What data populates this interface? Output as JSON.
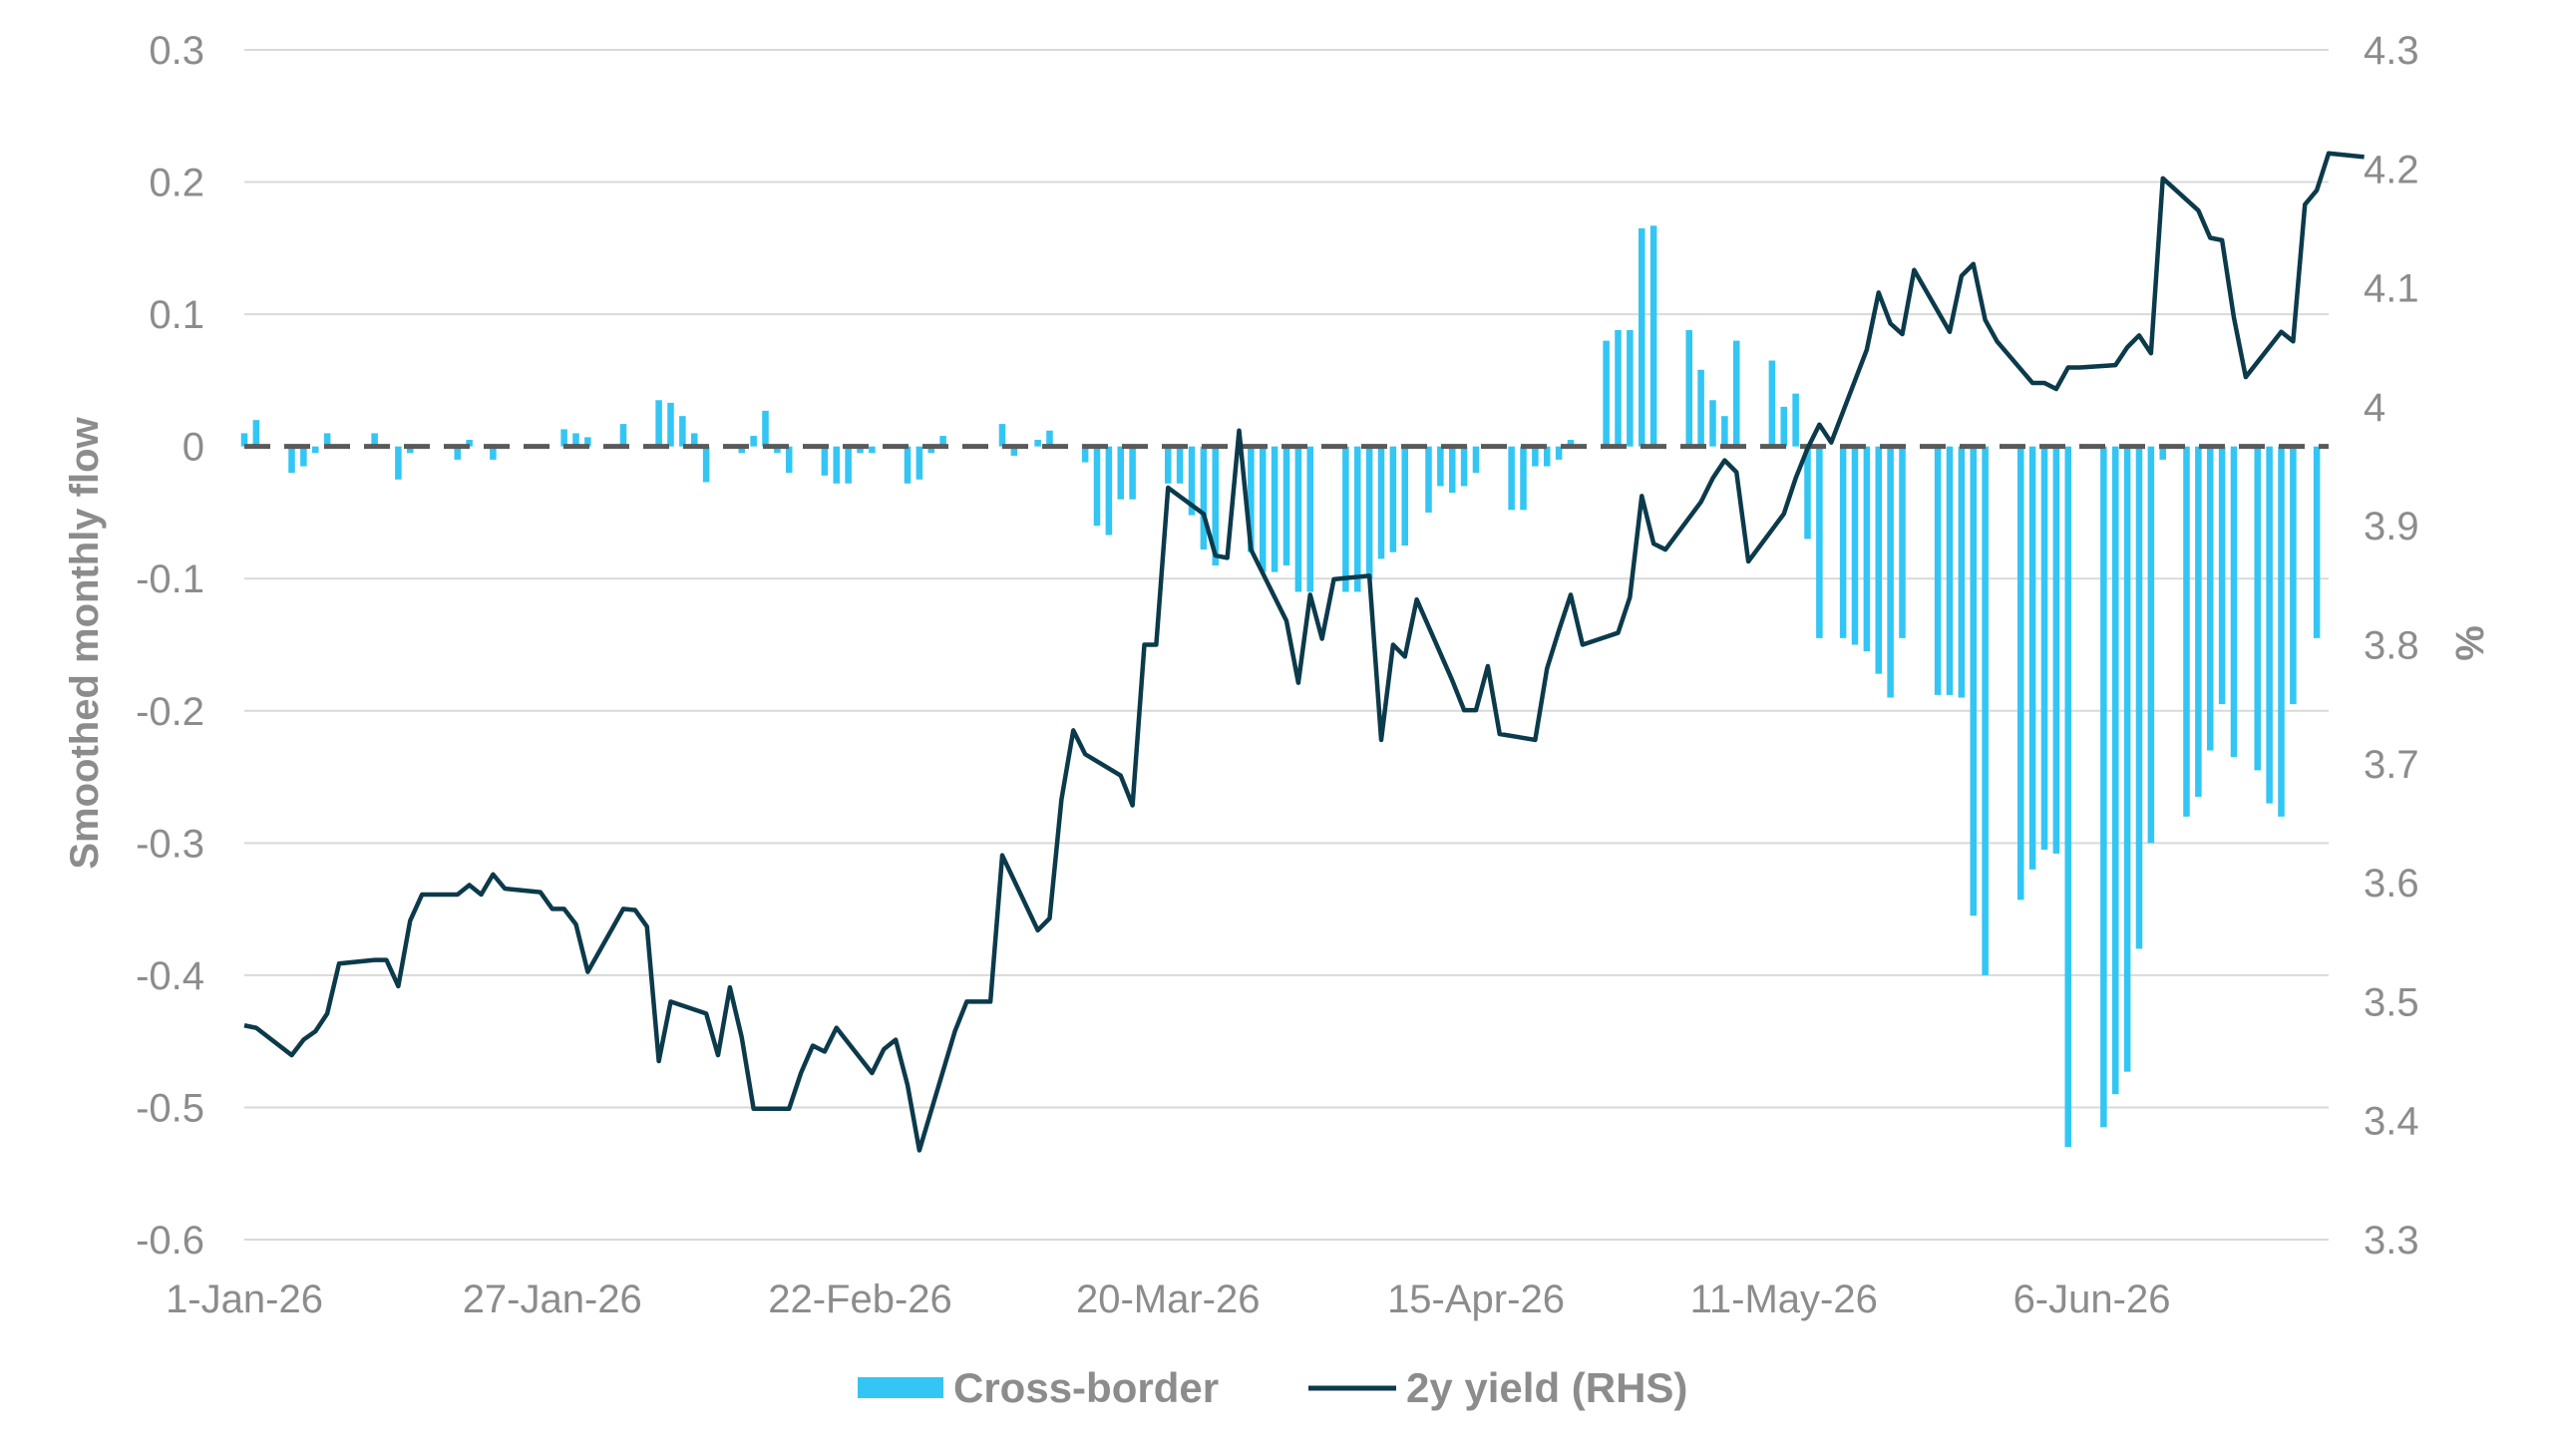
{
  "chart_data": {
    "type": "bar+line",
    "title": "",
    "x_tick_labels": [
      "1-Jan-26",
      "27-Jan-26",
      "22-Feb-26",
      "20-Mar-26",
      "15-Apr-26",
      "11-May-26",
      "6-Jun-26"
    ],
    "x_tick_dates": [
      "2026-01-01",
      "2026-01-27",
      "2026-02-22",
      "2026-03-20",
      "2026-04-15",
      "2026-05-11",
      "2026-06-06"
    ],
    "x_range": [
      "2026-01-01",
      "2026-06-26"
    ],
    "left_axis": {
      "label": "Smoothed monthly flow",
      "range": [
        -0.6,
        0.3
      ],
      "ticks": [
        0.3,
        0.2,
        0.1,
        0,
        -0.1,
        -0.2,
        -0.3,
        -0.4,
        -0.5,
        -0.6
      ],
      "tick_labels": [
        "0.3",
        "0.2",
        "0.1",
        "0",
        "-0.1",
        "-0.2",
        "-0.3",
        "-0.4",
        "-0.5",
        "-0.6"
      ]
    },
    "right_axis": {
      "label": "%",
      "range": [
        3.3,
        4.3
      ],
      "ticks": [
        4.3,
        4.2,
        4.1,
        4.0,
        3.9,
        3.8,
        3.7,
        3.6,
        3.5,
        3.4,
        3.3
      ],
      "tick_labels": [
        "4.3",
        "4.2",
        "4.1",
        "4",
        "3.9",
        "3.8",
        "3.7",
        "3.6",
        "3.5",
        "3.4",
        "3.3"
      ]
    },
    "grid": true,
    "zero_line": "dashed",
    "legend_position": "bottom",
    "series": [
      {
        "name": "Cross-border",
        "kind": "bar",
        "axis": "left",
        "color": "#33c6f4",
        "points": [
          [
            "2026-01-01",
            0.01
          ],
          [
            "2026-01-02",
            0.02
          ],
          [
            "2026-01-05",
            -0.02
          ],
          [
            "2026-01-06",
            -0.015
          ],
          [
            "2026-01-07",
            -0.005
          ],
          [
            "2026-01-08",
            0.01
          ],
          [
            "2026-01-12",
            0.01
          ],
          [
            "2026-01-14",
            -0.025
          ],
          [
            "2026-01-15",
            -0.005
          ],
          [
            "2026-01-19",
            -0.01
          ],
          [
            "2026-01-20",
            0.005
          ],
          [
            "2026-01-22",
            -0.01
          ],
          [
            "2026-01-28",
            0.013
          ],
          [
            "2026-01-29",
            0.01
          ],
          [
            "2026-01-30",
            0.007
          ],
          [
            "2026-02-02",
            0.017
          ],
          [
            "2026-02-05",
            0.035
          ],
          [
            "2026-02-06",
            0.033
          ],
          [
            "2026-02-07",
            0.023
          ],
          [
            "2026-02-08",
            0.01
          ],
          [
            "2026-02-09",
            -0.027
          ],
          [
            "2026-02-12",
            -0.005
          ],
          [
            "2026-02-13",
            0.008
          ],
          [
            "2026-02-14",
            0.027
          ],
          [
            "2026-02-15",
            -0.005
          ],
          [
            "2026-02-16",
            -0.02
          ],
          [
            "2026-02-19",
            -0.022
          ],
          [
            "2026-02-20",
            -0.028
          ],
          [
            "2026-02-21",
            -0.028
          ],
          [
            "2026-02-22",
            -0.005
          ],
          [
            "2026-02-23",
            -0.005
          ],
          [
            "2026-02-26",
            -0.028
          ],
          [
            "2026-02-27",
            -0.025
          ],
          [
            "2026-02-28",
            -0.005
          ],
          [
            "2026-03-01",
            0.008
          ],
          [
            "2026-03-06",
            0.017
          ],
          [
            "2026-03-07",
            -0.007
          ],
          [
            "2026-03-09",
            0.005
          ],
          [
            "2026-03-10",
            0.012
          ],
          [
            "2026-03-13",
            -0.012
          ],
          [
            "2026-03-14",
            -0.06
          ],
          [
            "2026-03-15",
            -0.067
          ],
          [
            "2026-03-16",
            -0.04
          ],
          [
            "2026-03-17",
            -0.04
          ],
          [
            "2026-03-20",
            -0.028
          ],
          [
            "2026-03-21",
            -0.028
          ],
          [
            "2026-03-22",
            -0.052
          ],
          [
            "2026-03-23",
            -0.078
          ],
          [
            "2026-03-24",
            -0.09
          ],
          [
            "2026-03-27",
            -0.08
          ],
          [
            "2026-03-28",
            -0.095
          ],
          [
            "2026-03-29",
            -0.095
          ],
          [
            "2026-03-30",
            -0.09
          ],
          [
            "2026-03-31",
            -0.11
          ],
          [
            "2026-04-01",
            -0.11
          ],
          [
            "2026-04-04",
            -0.11
          ],
          [
            "2026-04-05",
            -0.11
          ],
          [
            "2026-04-06",
            -0.1
          ],
          [
            "2026-04-07",
            -0.085
          ],
          [
            "2026-04-08",
            -0.08
          ],
          [
            "2026-04-09",
            -0.075
          ],
          [
            "2026-04-11",
            -0.05
          ],
          [
            "2026-04-12",
            -0.03
          ],
          [
            "2026-04-13",
            -0.035
          ],
          [
            "2026-04-14",
            -0.03
          ],
          [
            "2026-04-15",
            -0.02
          ],
          [
            "2026-04-18",
            -0.048
          ],
          [
            "2026-04-19",
            -0.048
          ],
          [
            "2026-04-20",
            -0.015
          ],
          [
            "2026-04-21",
            -0.015
          ],
          [
            "2026-04-22",
            -0.01
          ],
          [
            "2026-04-23",
            0.005
          ],
          [
            "2026-04-26",
            0.08
          ],
          [
            "2026-04-27",
            0.088
          ],
          [
            "2026-04-28",
            0.088
          ],
          [
            "2026-04-29",
            0.165
          ],
          [
            "2026-04-30",
            0.167
          ],
          [
            "2026-05-03",
            0.088
          ],
          [
            "2026-05-04",
            0.058
          ],
          [
            "2026-05-05",
            0.035
          ],
          [
            "2026-05-06",
            0.023
          ],
          [
            "2026-05-07",
            0.08
          ],
          [
            "2026-05-10",
            0.065
          ],
          [
            "2026-05-11",
            0.03
          ],
          [
            "2026-05-12",
            0.04
          ],
          [
            "2026-05-13",
            -0.07
          ],
          [
            "2026-05-14",
            -0.145
          ],
          [
            "2026-05-16",
            -0.145
          ],
          [
            "2026-05-17",
            -0.15
          ],
          [
            "2026-05-18",
            -0.155
          ],
          [
            "2026-05-19",
            -0.172
          ],
          [
            "2026-05-20",
            -0.19
          ],
          [
            "2026-05-21",
            -0.145
          ],
          [
            "2026-05-24",
            -0.188
          ],
          [
            "2026-05-25",
            -0.188
          ],
          [
            "2026-05-26",
            -0.19
          ],
          [
            "2026-05-27",
            -0.355
          ],
          [
            "2026-05-28",
            -0.4
          ],
          [
            "2026-05-31",
            -0.343
          ],
          [
            "2026-06-01",
            -0.32
          ],
          [
            "2026-06-02",
            -0.305
          ],
          [
            "2026-06-03",
            -0.308
          ],
          [
            "2026-06-04",
            -0.53
          ],
          [
            "2026-06-07",
            -0.515
          ],
          [
            "2026-06-08",
            -0.49
          ],
          [
            "2026-06-09",
            -0.473
          ],
          [
            "2026-06-10",
            -0.38
          ],
          [
            "2026-06-11",
            -0.3
          ],
          [
            "2026-06-12",
            -0.01
          ],
          [
            "2026-06-14",
            -0.28
          ],
          [
            "2026-06-15",
            -0.265
          ],
          [
            "2026-06-16",
            -0.23
          ],
          [
            "2026-06-17",
            -0.195
          ],
          [
            "2026-06-18",
            -0.235
          ],
          [
            "2026-06-20",
            -0.245
          ],
          [
            "2026-06-21",
            -0.27
          ],
          [
            "2026-06-22",
            -0.28
          ],
          [
            "2026-06-23",
            -0.195
          ],
          [
            "2026-06-25",
            -0.145
          ]
        ]
      },
      {
        "name": "2y yield (RHS)",
        "kind": "line",
        "axis": "right",
        "color": "#0b3a4b",
        "points": [
          [
            "2026-01-01",
            3.48
          ],
          [
            "2026-01-02",
            3.478
          ],
          [
            "2026-01-05",
            3.455
          ],
          [
            "2026-01-06",
            3.468
          ],
          [
            "2026-01-07",
            3.475
          ],
          [
            "2026-01-08",
            3.49
          ],
          [
            "2026-01-09",
            3.532
          ],
          [
            "2026-01-12",
            3.535
          ],
          [
            "2026-01-13",
            3.535
          ],
          [
            "2026-01-14",
            3.513
          ],
          [
            "2026-01-15",
            3.568
          ],
          [
            "2026-01-16",
            3.59
          ],
          [
            "2026-01-19",
            3.59
          ],
          [
            "2026-01-20",
            3.598
          ],
          [
            "2026-01-21",
            3.59
          ],
          [
            "2026-01-22",
            3.607
          ],
          [
            "2026-01-23",
            3.595
          ],
          [
            "2026-01-26",
            3.592
          ],
          [
            "2026-01-27",
            3.578
          ],
          [
            "2026-01-28",
            3.578
          ],
          [
            "2026-01-29",
            3.565
          ],
          [
            "2026-01-30",
            3.525
          ],
          [
            "2026-02-02",
            3.578
          ],
          [
            "2026-02-03",
            3.577
          ],
          [
            "2026-02-04",
            3.563
          ],
          [
            "2026-02-05",
            3.45
          ],
          [
            "2026-02-06",
            3.5
          ],
          [
            "2026-02-09",
            3.49
          ],
          [
            "2026-02-10",
            3.455
          ],
          [
            "2026-02-11",
            3.512
          ],
          [
            "2026-02-12",
            3.47
          ],
          [
            "2026-02-13",
            3.41
          ],
          [
            "2026-02-16",
            3.41
          ],
          [
            "2026-02-17",
            3.44
          ],
          [
            "2026-02-18",
            3.463
          ],
          [
            "2026-02-19",
            3.458
          ],
          [
            "2026-02-20",
            3.478
          ],
          [
            "2026-02-23",
            3.44
          ],
          [
            "2026-02-24",
            3.46
          ],
          [
            "2026-02-25",
            3.468
          ],
          [
            "2026-02-26",
            3.43
          ],
          [
            "2026-02-27",
            3.375
          ],
          [
            "2026-03-02",
            3.475
          ],
          [
            "2026-03-03",
            3.5
          ],
          [
            "2026-03-04",
            3.5
          ],
          [
            "2026-03-05",
            3.5
          ],
          [
            "2026-03-06",
            3.623
          ],
          [
            "2026-03-09",
            3.56
          ],
          [
            "2026-03-10",
            3.57
          ],
          [
            "2026-03-11",
            3.67
          ],
          [
            "2026-03-12",
            3.728
          ],
          [
            "2026-03-13",
            3.708
          ],
          [
            "2026-03-16",
            3.69
          ],
          [
            "2026-03-17",
            3.665
          ],
          [
            "2026-03-18",
            3.8
          ],
          [
            "2026-03-19",
            3.8
          ],
          [
            "2026-03-20",
            3.932
          ],
          [
            "2026-03-23",
            3.91
          ],
          [
            "2026-03-24",
            3.875
          ],
          [
            "2026-03-25",
            3.873
          ],
          [
            "2026-03-26",
            3.98
          ],
          [
            "2026-03-27",
            3.88
          ],
          [
            "2026-03-30",
            3.82
          ],
          [
            "2026-03-31",
            3.768
          ],
          [
            "2026-04-01",
            3.842
          ],
          [
            "2026-04-02",
            3.805
          ],
          [
            "2026-04-03",
            3.855
          ],
          [
            "2026-04-06",
            3.858
          ],
          [
            "2026-04-07",
            3.72
          ],
          [
            "2026-04-08",
            3.8
          ],
          [
            "2026-04-09",
            3.79
          ],
          [
            "2026-04-10",
            3.838
          ],
          [
            "2026-04-13",
            3.77
          ],
          [
            "2026-04-14",
            3.745
          ],
          [
            "2026-04-15",
            3.745
          ],
          [
            "2026-04-16",
            3.782
          ],
          [
            "2026-04-17",
            3.725
          ],
          [
            "2026-04-20",
            3.72
          ],
          [
            "2026-04-21",
            3.78
          ],
          [
            "2026-04-22",
            3.812
          ],
          [
            "2026-04-23",
            3.842
          ],
          [
            "2026-04-24",
            3.8
          ],
          [
            "2026-04-27",
            3.81
          ],
          [
            "2026-04-28",
            3.84
          ],
          [
            "2026-04-29",
            3.925
          ],
          [
            "2026-04-30",
            3.885
          ],
          [
            "2026-05-01",
            3.88
          ],
          [
            "2026-05-04",
            3.92
          ],
          [
            "2026-05-05",
            3.94
          ],
          [
            "2026-05-06",
            3.955
          ],
          [
            "2026-05-07",
            3.945
          ],
          [
            "2026-05-08",
            3.87
          ],
          [
            "2026-05-11",
            3.91
          ],
          [
            "2026-05-12",
            3.94
          ],
          [
            "2026-05-13",
            3.965
          ],
          [
            "2026-05-14",
            3.985
          ],
          [
            "2026-05-15",
            3.97
          ],
          [
            "2026-05-18",
            4.048
          ],
          [
            "2026-05-19",
            4.096
          ],
          [
            "2026-05-20",
            4.07
          ],
          [
            "2026-05-21",
            4.061
          ],
          [
            "2026-05-22",
            4.115
          ],
          [
            "2026-05-25",
            4.063
          ],
          [
            "2026-05-26",
            4.11
          ],
          [
            "2026-05-27",
            4.12
          ],
          [
            "2026-05-28",
            4.073
          ],
          [
            "2026-05-29",
            4.055
          ],
          [
            "2026-06-01",
            4.02
          ],
          [
            "2026-06-02",
            4.02
          ],
          [
            "2026-06-03",
            4.015
          ],
          [
            "2026-06-04",
            4.033
          ],
          [
            "2026-06-05",
            4.033
          ],
          [
            "2026-06-08",
            4.035
          ],
          [
            "2026-06-09",
            4.05
          ],
          [
            "2026-06-10",
            4.06
          ],
          [
            "2026-06-11",
            4.045
          ],
          [
            "2026-06-12",
            4.192
          ],
          [
            "2026-06-15",
            4.165
          ],
          [
            "2026-06-16",
            4.142
          ],
          [
            "2026-06-17",
            4.14
          ],
          [
            "2026-06-18",
            4.075
          ],
          [
            "2026-06-19",
            4.025
          ],
          [
            "2026-06-22",
            4.063
          ],
          [
            "2026-06-23",
            4.055
          ],
          [
            "2026-06-24",
            4.17
          ],
          [
            "2026-06-25",
            4.182
          ],
          [
            "2026-06-26",
            4.213
          ],
          [
            "2026-06-29",
            4.21
          ]
        ]
      }
    ]
  }
}
